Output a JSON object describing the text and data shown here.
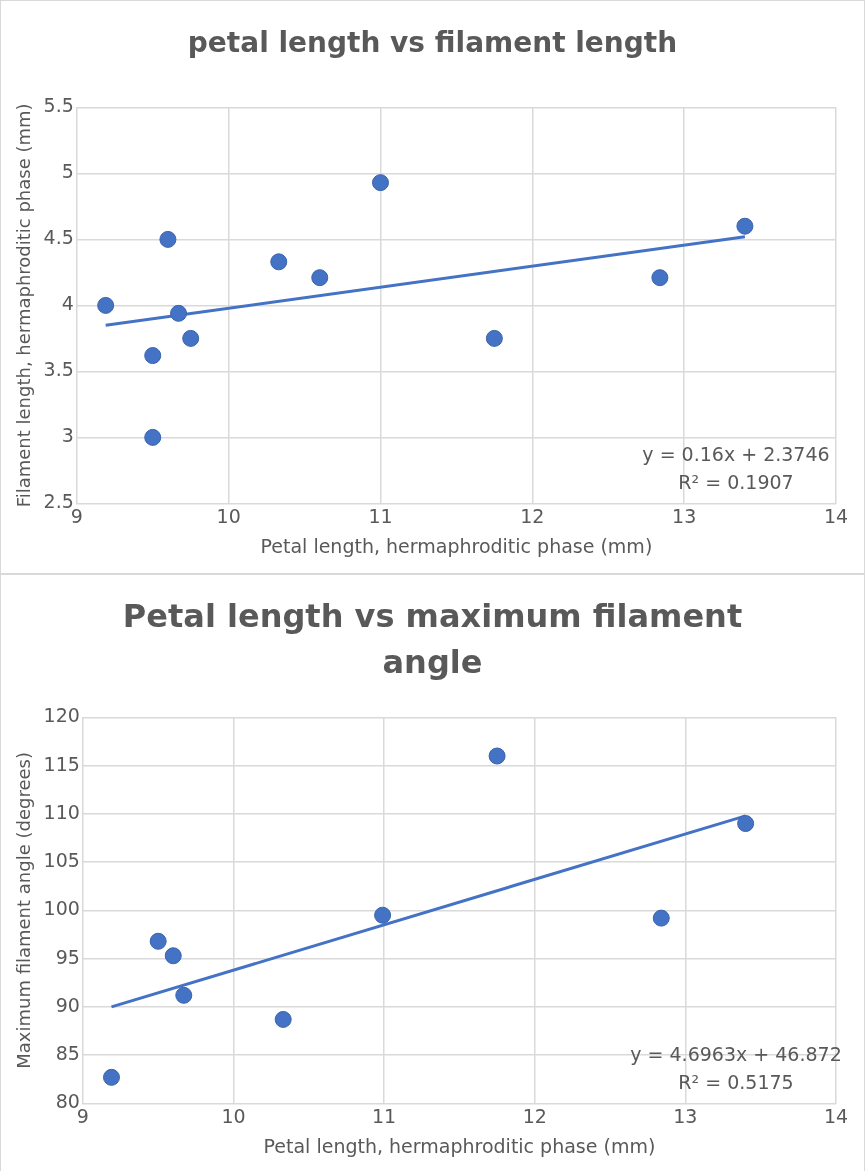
{
  "chart_data": [
    {
      "type": "scatter",
      "title": "petal length vs filament length",
      "xlabel": "Petal length, hermaphroditic phase (mm)",
      "ylabel": "Filament length, hermaphroditic phase (mm)",
      "xlim": [
        9,
        14
      ],
      "xticks": [
        9,
        10,
        11,
        12,
        13,
        14
      ],
      "ylim": [
        2.5,
        5.5
      ],
      "yticks": [
        2.5,
        3,
        3.5,
        4,
        4.5,
        5,
        5.5
      ],
      "grid": true,
      "marker": "circle",
      "series": [
        {
          "color": "#4472c4",
          "x": [
            9.19,
            9.5,
            9.5,
            9.6,
            9.67,
            9.75,
            10.33,
            10.6,
            11.0,
            11.75,
            12.84,
            13.4
          ],
          "values": [
            4.0,
            3.62,
            3.0,
            4.5,
            3.94,
            3.75,
            4.33,
            4.21,
            4.93,
            3.75,
            4.21,
            4.6
          ]
        },
        {
          "type": "line",
          "marker": "none",
          "color": "#4472c4",
          "x": [
            9.19,
            13.4
          ],
          "values": [
            3.85,
            4.52
          ]
        }
      ],
      "annotations": [
        "y = 0.16x + 2.3746",
        "R² = 0.1907"
      ]
    },
    {
      "type": "scatter",
      "title": "Petal length vs maximum filament angle",
      "xlabel": "Petal length, hermaphroditic phase (mm)",
      "ylabel": "Maximum filament angle (degrees)",
      "xlim": [
        9,
        14
      ],
      "xticks": [
        9,
        10,
        11,
        12,
        13,
        14
      ],
      "ylim": [
        80,
        120
      ],
      "yticks": [
        80,
        85,
        90,
        95,
        100,
        105,
        110,
        115,
        120
      ],
      "grid": true,
      "marker": "circle",
      "series": [
        {
          "color": "#4472c4",
          "x": [
            9.19,
            9.5,
            9.6,
            9.67,
            10.33,
            10.99,
            11.75,
            12.84,
            13.4
          ],
          "values": [
            82.7,
            96.8,
            95.3,
            91.2,
            88.7,
            99.5,
            116,
            99.2,
            109
          ]
        },
        {
          "type": "line",
          "marker": "none",
          "color": "#4472c4",
          "x": [
            9.19,
            13.4
          ],
          "values": [
            90,
            109.8
          ]
        }
      ],
      "annotations": [
        "y = 4.6963x + 46.872",
        "R² = 0.5175"
      ]
    }
  ]
}
